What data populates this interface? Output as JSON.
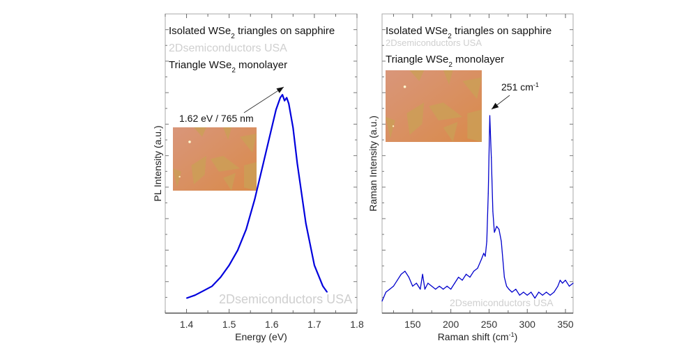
{
  "chart_data": [
    {
      "type": "line",
      "title": "Isolated WSe2 triangles on sapphire",
      "title_parts": [
        "Isolated WSe",
        "2",
        " triangles on sapphire"
      ],
      "watermark_top": "2Dsemiconductors USA",
      "subtitle_parts": [
        "Triangle WSe",
        "2",
        " monolayer"
      ],
      "watermark_bottom": "2Dsemiconductors USA",
      "xlabel": "Energy (eV)",
      "ylabel": "PL Intensity (a.u.)",
      "xlim": [
        1.35,
        1.8
      ],
      "ylim": [
        0,
        1.0
      ],
      "xticks": [
        1.4,
        1.5,
        1.6,
        1.7,
        1.8
      ],
      "xtick_labels": [
        "1.4",
        "1.5",
        "1.6",
        "1.7",
        "1.8"
      ],
      "grid": false,
      "annotation": "1.62 eV / 765 nm",
      "annotation_point": [
        1.625,
        0.74
      ],
      "inset": "optical micrograph of WSe2 triangles",
      "series": [
        {
          "name": "PL spectrum",
          "color": "#0000dd",
          "x": [
            1.4,
            1.42,
            1.44,
            1.46,
            1.48,
            1.5,
            1.52,
            1.54,
            1.56,
            1.58,
            1.6,
            1.61,
            1.62,
            1.625,
            1.63,
            1.635,
            1.64,
            1.65,
            1.66,
            1.68,
            1.7,
            1.72,
            1.73
          ],
          "y": [
            0.05,
            0.06,
            0.075,
            0.09,
            0.12,
            0.16,
            0.21,
            0.28,
            0.38,
            0.5,
            0.62,
            0.68,
            0.72,
            0.73,
            0.71,
            0.72,
            0.7,
            0.62,
            0.5,
            0.3,
            0.16,
            0.09,
            0.07
          ]
        }
      ]
    },
    {
      "type": "line",
      "title": "Isolated WSe2 triangles on sapphire",
      "title_parts": [
        "Isolated WSe",
        "2",
        " triangles on sapphire"
      ],
      "watermark_top": "2Dsemiconductors USA",
      "subtitle_parts": [
        "Triangle WSe",
        "2",
        " monolayer"
      ],
      "watermark_bottom": "2Dsemiconductors USA",
      "xlabel": "Raman shift (cm-1)",
      "xlabel_parts": [
        "Raman shift (cm",
        "-1",
        ")"
      ],
      "ylabel": "Raman Intensity (a.u.)",
      "xlim": [
        110,
        360
      ],
      "ylim": [
        0,
        1.0
      ],
      "xticks": [
        150,
        200,
        250,
        300,
        350
      ],
      "xtick_labels": [
        "150",
        "200",
        "250",
        "300",
        "350"
      ],
      "grid": false,
      "annotation": "251 cm-1",
      "annotation_parts": [
        "251 cm",
        "-1"
      ],
      "annotation_point": [
        251,
        0.7
      ],
      "inset": "optical micrograph of WSe2 triangles",
      "series": [
        {
          "name": "Raman spectrum",
          "color": "#0000cc",
          "x": [
            110,
            115,
            120,
            125,
            130,
            135,
            140,
            145,
            150,
            155,
            160,
            163,
            166,
            170,
            175,
            180,
            185,
            190,
            195,
            200,
            205,
            210,
            215,
            220,
            225,
            230,
            235,
            240,
            243,
            245,
            247,
            249,
            251,
            253,
            255,
            257,
            260,
            263,
            266,
            268,
            270,
            273,
            276,
            280,
            285,
            290,
            295,
            300,
            305,
            310,
            315,
            320,
            325,
            330,
            335,
            340,
            343,
            346,
            350,
            355,
            360
          ],
          "y": [
            0.04,
            0.07,
            0.08,
            0.09,
            0.11,
            0.13,
            0.14,
            0.12,
            0.09,
            0.1,
            0.08,
            0.13,
            0.08,
            0.1,
            0.09,
            0.08,
            0.09,
            0.08,
            0.09,
            0.08,
            0.1,
            0.12,
            0.11,
            0.13,
            0.12,
            0.14,
            0.15,
            0.18,
            0.2,
            0.19,
            0.24,
            0.4,
            0.66,
            0.52,
            0.34,
            0.27,
            0.29,
            0.28,
            0.24,
            0.18,
            0.12,
            0.09,
            0.08,
            0.07,
            0.08,
            0.06,
            0.07,
            0.06,
            0.07,
            0.05,
            0.07,
            0.06,
            0.07,
            0.06,
            0.07,
            0.09,
            0.11,
            0.1,
            0.11,
            0.09,
            0.1
          ]
        }
      ]
    }
  ]
}
